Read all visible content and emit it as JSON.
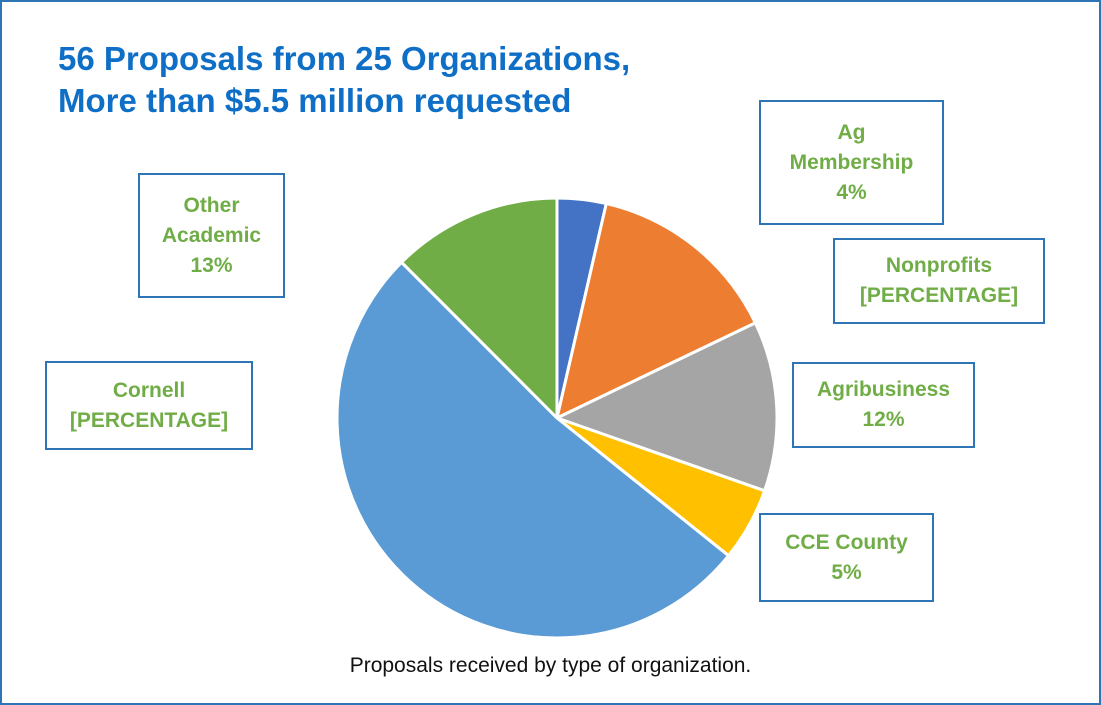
{
  "title_lines": [
    "56 Proposals from 25 Organizations,",
    "More than $5.5 million requested"
  ],
  "caption": "Proposals received by type of organization.",
  "chart_data": {
    "type": "pie",
    "title": "56 Proposals from 25 Organizations, More than $5.5 million requested",
    "caption": "Proposals received by type of organization.",
    "start_angle_deg": 0,
    "direction": "clockwise",
    "slices": [
      {
        "key": "ag",
        "label_lines": [
          "Ag",
          "Membership",
          "4%"
        ],
        "value": 3.6,
        "color": "#4472c4"
      },
      {
        "key": "nonprofits",
        "label_lines": [
          "Nonprofits",
          "[PERCENTAGE]"
        ],
        "value": 14.3,
        "color": "#ed7d31"
      },
      {
        "key": "agribusiness",
        "label_lines": [
          "Agribusiness",
          "12%"
        ],
        "value": 12.5,
        "color": "#a5a5a5"
      },
      {
        "key": "cce",
        "label_lines": [
          "CCE County",
          "5%"
        ],
        "value": 5.4,
        "color": "#ffc000"
      },
      {
        "key": "cornell",
        "label_lines": [
          "Cornell",
          "[PERCENTAGE]"
        ],
        "value": 51.8,
        "color": "#5b9bd5"
      },
      {
        "key": "other",
        "label_lines": [
          "Other",
          "Academic",
          "13%"
        ],
        "value": 12.5,
        "color": "#70ad47"
      }
    ]
  }
}
